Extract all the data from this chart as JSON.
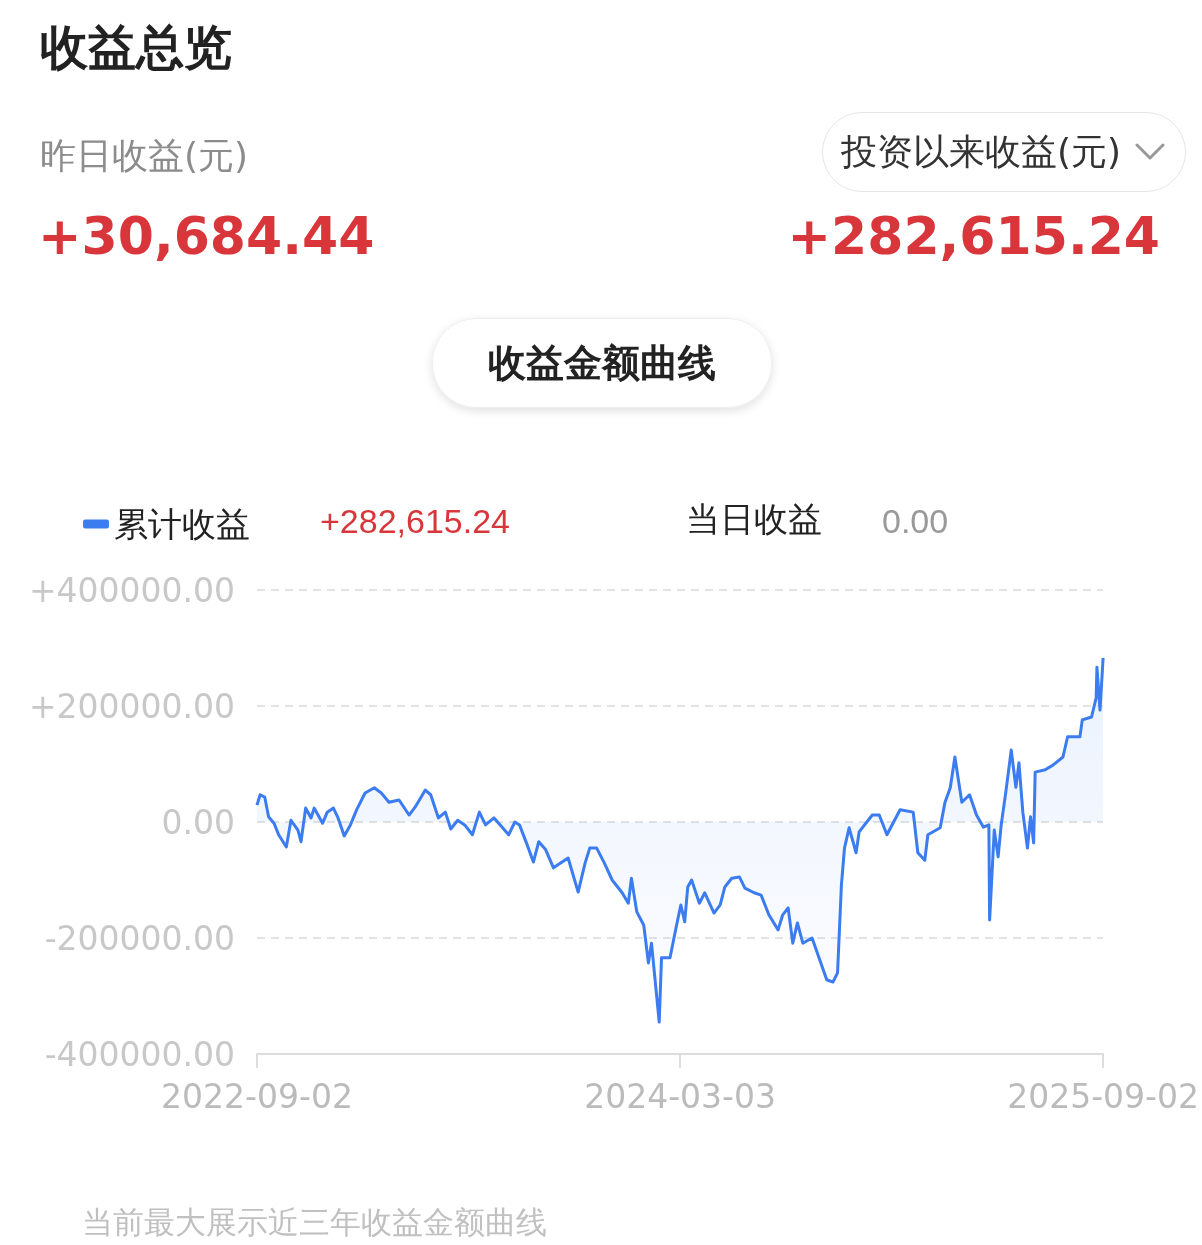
{
  "chart_data": {
    "type": "area",
    "title": "收益总览",
    "annotations": [
      "昨日收益(元)",
      "+30,684.44",
      "投资以来收益(元)",
      "+282,615.24",
      "收益金额曲线",
      "+282,615.24",
      "当日收益",
      "0.00",
      "当前最大展示近三年收益金额曲线"
    ],
    "legend": "top left",
    "grid": "y",
    "xlim": [
      "2022-09-02",
      "2025-09-02"
    ],
    "xticks": [
      "2022-09-02",
      "2024-03-03",
      "2025-09-02"
    ],
    "ylim": [
      -400000,
      400000
    ],
    "yticks": [
      {
        "value": -400000,
        "label": "-400000.00"
      },
      {
        "value": -200000,
        "label": "-200000.00"
      },
      {
        "value": 0,
        "label": "0.00"
      },
      {
        "value": 200000,
        "label": "+200000.00"
      },
      {
        "value": 400000,
        "label": "+400000.00"
      }
    ],
    "series": [
      {
        "name": "累计收益",
        "color": "#3b7cf0",
        "x": [
          "2022-09-02",
          "2022-09-06",
          "2022-09-12",
          "2022-09-17",
          "2022-09-24",
          "2022-09-30",
          "2022-10-10",
          "2022-10-16",
          "2022-10-25",
          "2022-10-29",
          "2022-11-04",
          "2022-11-11",
          "2022-11-15",
          "2022-11-26",
          "2022-12-02",
          "2022-12-10",
          "2022-12-16",
          "2022-12-24",
          "2023-01-01",
          "2023-01-09",
          "2023-01-20",
          "2023-02-01",
          "2023-02-10",
          "2023-02-20",
          "2023-03-05",
          "2023-03-18",
          "2023-03-26",
          "2023-04-08",
          "2023-04-15",
          "2023-04-25",
          "2023-05-04",
          "2023-05-11",
          "2023-05-20",
          "2023-05-29",
          "2023-06-08",
          "2023-06-17",
          "2023-06-25",
          "2023-07-06",
          "2023-07-14",
          "2023-07-25",
          "2023-08-02",
          "2023-08-08",
          "2023-08-17",
          "2023-08-26",
          "2023-09-02",
          "2023-09-11",
          "2023-09-21",
          "2023-10-10",
          "2023-10-23",
          "2023-11-01",
          "2023-11-07",
          "2023-11-16",
          "2023-11-26",
          "2023-12-06",
          "2023-12-19",
          "2023-12-27",
          "2023-12-31",
          "2024-01-07",
          "2024-01-16",
          "2024-01-22",
          "2024-01-26",
          "2024-02-05",
          "2024-02-08",
          "2024-02-19",
          "2024-02-27",
          "2024-03-04",
          "2024-03-09",
          "2024-03-13",
          "2024-03-18",
          "2024-03-28",
          "2024-04-04",
          "2024-04-16",
          "2024-04-24",
          "2024-04-30",
          "2024-05-09",
          "2024-05-19",
          "2024-05-26",
          "2024-06-07",
          "2024-06-16",
          "2024-06-26",
          "2024-07-08",
          "2024-07-14",
          "2024-07-21",
          "2024-07-27",
          "2024-08-02",
          "2024-08-09",
          "2024-08-21",
          "2024-08-31",
          "2024-09-09",
          "2024-09-17",
          "2024-09-23",
          "2024-09-28",
          "2024-10-02",
          "2024-10-08",
          "2024-10-17",
          "2024-10-21",
          "2024-11-07",
          "2024-11-16",
          "2024-11-26",
          "2024-12-13",
          "2024-12-30",
          "2025-01-05",
          "2025-01-14",
          "2025-01-18",
          "2025-02-03",
          "2025-02-09",
          "2025-02-16",
          "2025-02-22",
          "2025-03-03",
          "2025-03-13",
          "2025-03-22",
          "2025-03-31",
          "2025-04-07",
          "2025-04-08",
          "2025-04-14",
          "2025-04-19",
          "2025-04-23",
          "2025-04-29",
          "2025-05-06",
          "2025-05-12",
          "2025-05-16",
          "2025-05-21",
          "2025-05-27",
          "2025-05-31",
          "2025-06-04",
          "2025-06-06",
          "2025-06-19",
          "2025-06-29",
          "2025-07-12",
          "2025-07-18",
          "2025-08-03",
          "2025-08-06",
          "2025-08-18",
          "2025-08-24",
          "2025-08-25",
          "2025-08-29",
          "2025-09-02"
        ],
        "values": [
          29000,
          47000,
          43000,
          9000,
          -2000,
          -22000,
          -43000,
          3000,
          -14000,
          -34000,
          24000,
          7000,
          24000,
          -2000,
          17000,
          24000,
          7000,
          -24000,
          -5000,
          21000,
          50000,
          59000,
          50000,
          34000,
          38000,
          12000,
          26000,
          55000,
          47000,
          7000,
          17000,
          -12000,
          3000,
          -5000,
          -22000,
          17000,
          -5000,
          7000,
          -5000,
          -22000,
          0,
          -5000,
          -36000,
          -69000,
          -34000,
          -48000,
          -79000,
          -62000,
          -121000,
          -71000,
          -45000,
          -45000,
          -71000,
          -100000,
          -122000,
          -140000,
          -97000,
          -155000,
          -178000,
          -243000,
          -209000,
          -345000,
          -234000,
          -234000,
          -181000,
          -143000,
          -172000,
          -112000,
          -100000,
          -140000,
          -122000,
          -157000,
          -143000,
          -112000,
          -97000,
          -95000,
          -114000,
          -122000,
          -126000,
          -160000,
          -186000,
          -160000,
          -148000,
          -209000,
          -174000,
          -209000,
          -200000,
          -238000,
          -272000,
          -276000,
          -260000,
          -109000,
          -45000,
          -10000,
          -53000,
          -17000,
          12000,
          12000,
          -22000,
          21000,
          17000,
          -53000,
          -66000,
          -22000,
          -10000,
          33000,
          59000,
          112000,
          34000,
          47000,
          12000,
          -9000,
          -5000,
          -169000,
          -14000,
          -60000,
          -5000,
          52000,
          124000,
          60000,
          102000,
          17000,
          -45000,
          9000,
          -36000,
          86000,
          90000,
          98000,
          112000,
          147000,
          147000,
          176000,
          181000,
          214000,
          267000,
          193000,
          283000
        ]
      }
    ]
  }
}
